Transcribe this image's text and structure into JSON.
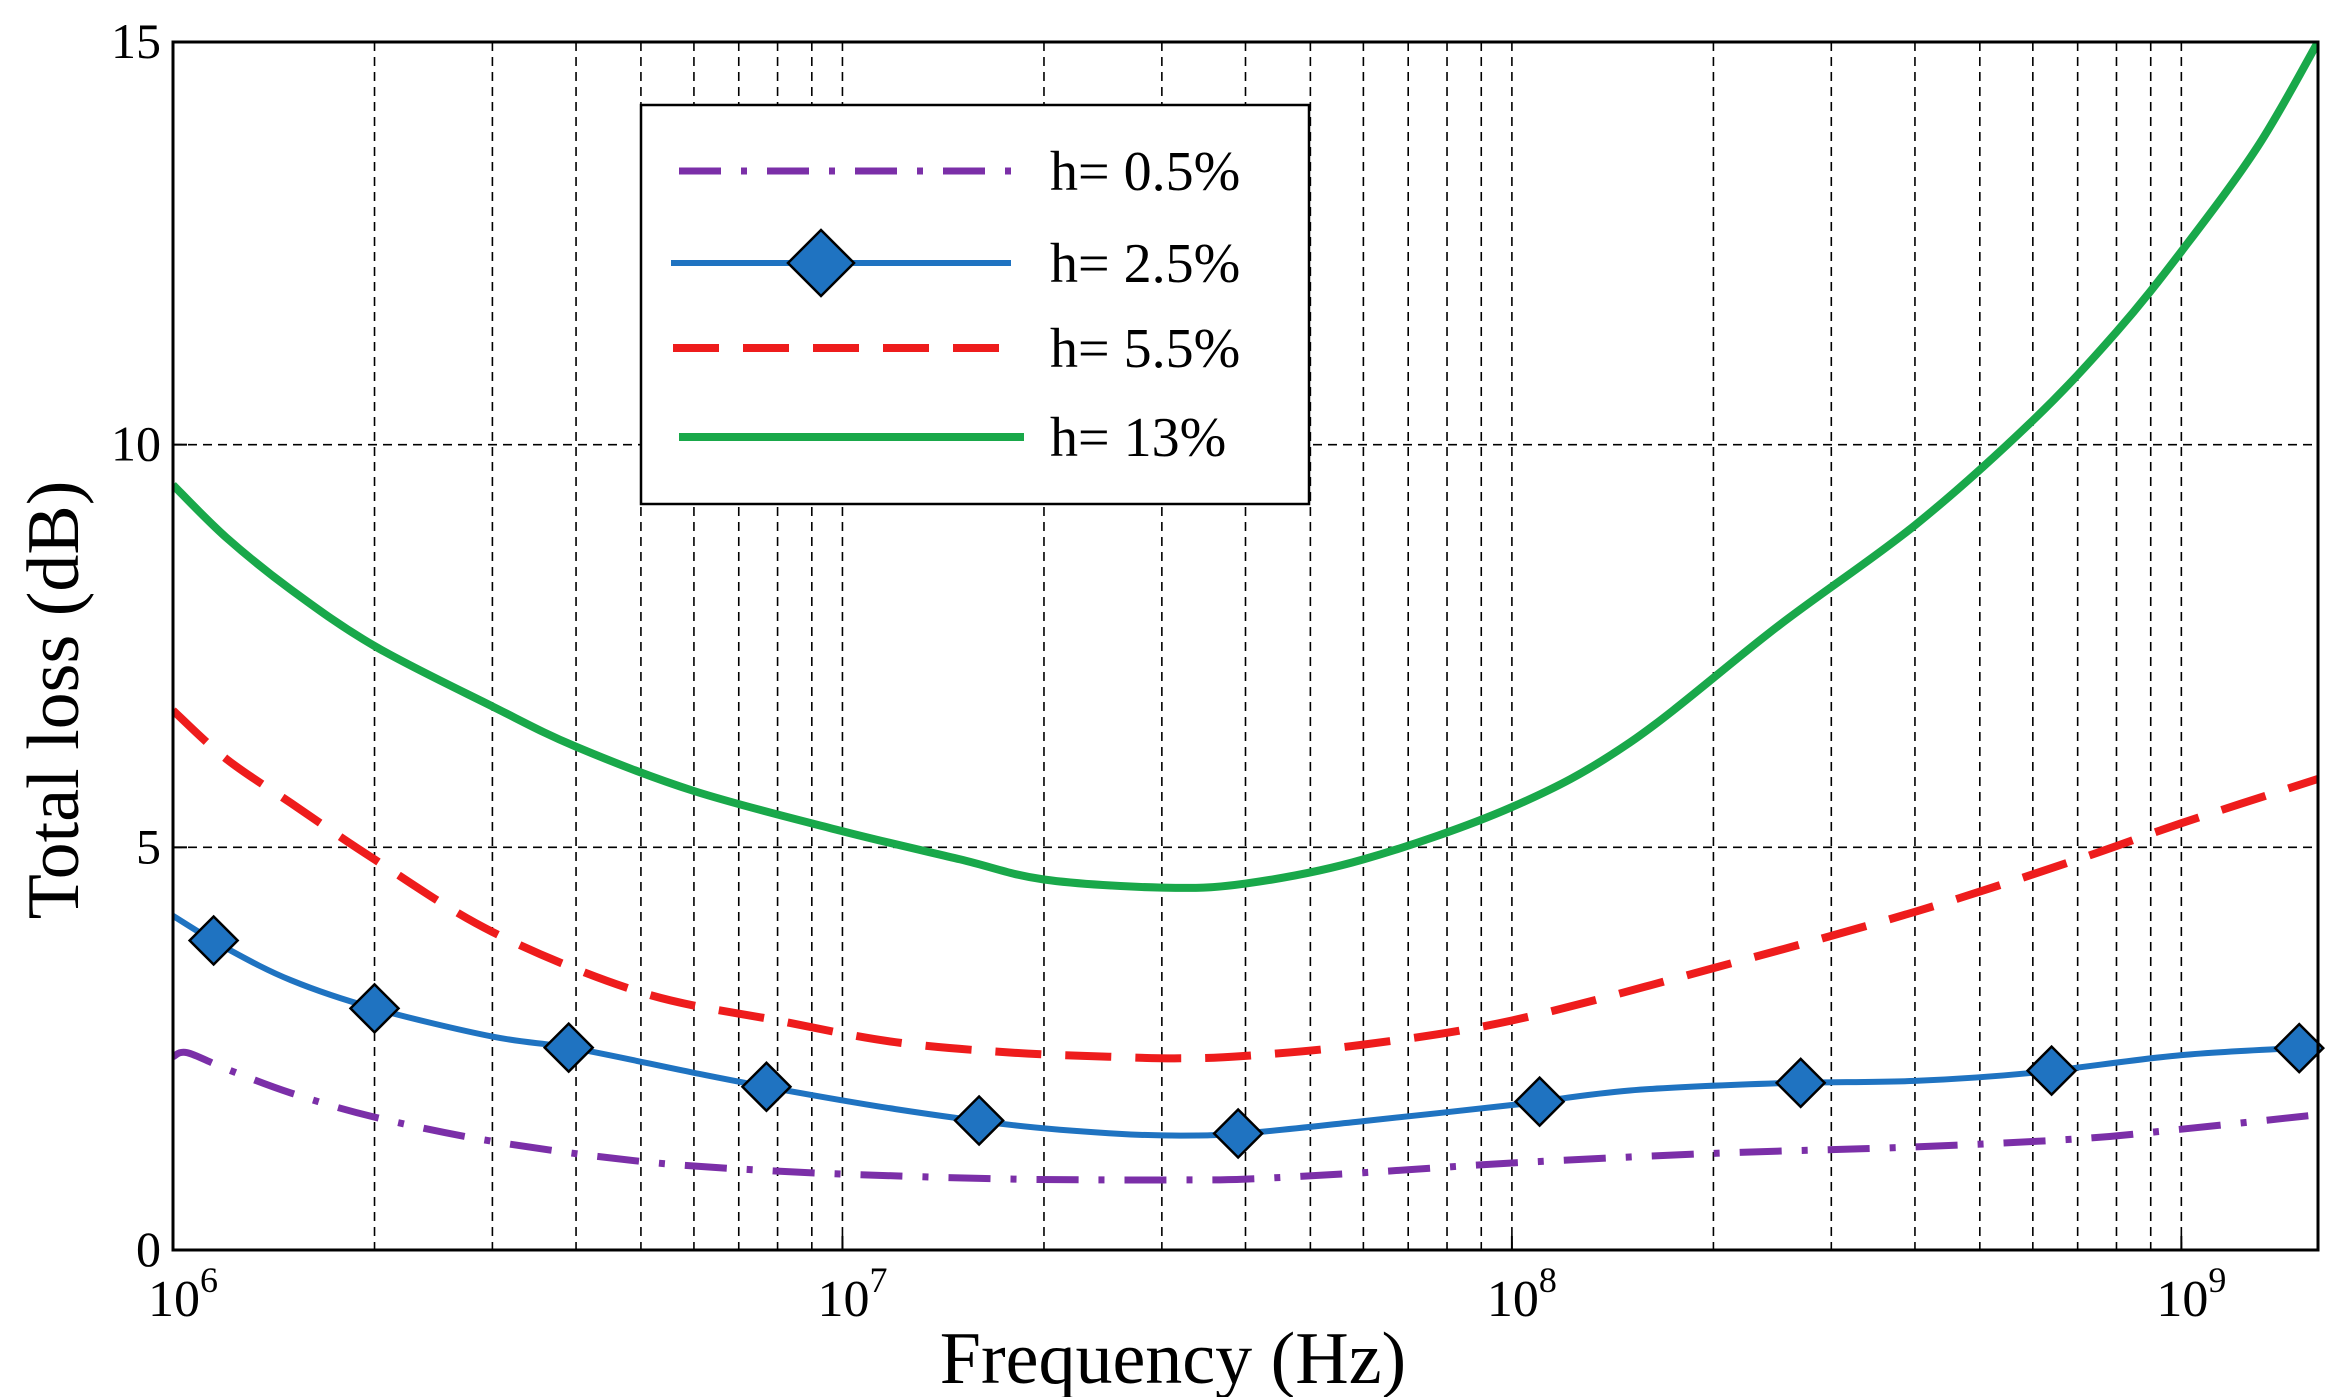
{
  "chart_data": {
    "type": "line",
    "title": "",
    "xlabel": "Frequency (Hz)",
    "ylabel": "Total loss (dB)",
    "xscale": "log",
    "xlim": [
      1000000,
      1600000000
    ],
    "ylim": [
      0,
      15
    ],
    "grid": true,
    "legend_position": "top-center",
    "x_ticks": [
      {
        "value": 1000000,
        "base": "10",
        "exp": "6"
      },
      {
        "value": 10000000,
        "base": "10",
        "exp": "7"
      },
      {
        "value": 100000000,
        "base": "10",
        "exp": "8"
      },
      {
        "value": 1000000000,
        "base": "10",
        "exp": "9"
      }
    ],
    "y_ticks": [
      {
        "value": 0,
        "label": "0"
      },
      {
        "value": 5,
        "label": "5"
      },
      {
        "value": 10,
        "label": "10"
      },
      {
        "value": 15,
        "label": "15"
      }
    ],
    "series": [
      {
        "name": "h= 0.5%",
        "color": "#7B2FA8",
        "style": "dashdot",
        "marker": "none",
        "x": [
          1000000,
          1050000,
          1200000,
          1500000,
          2000000,
          3000000,
          5000000,
          8000000,
          12000000,
          18000000,
          25000000,
          32000000,
          40000000,
          60000000,
          100000000,
          200000000,
          400000000,
          700000000,
          1000000000,
          1600000000
        ],
        "y": [
          2.4,
          2.45,
          2.25,
          1.95,
          1.65,
          1.35,
          1.1,
          0.98,
          0.92,
          0.88,
          0.87,
          0.87,
          0.88,
          0.96,
          1.08,
          1.2,
          1.28,
          1.38,
          1.5,
          1.68
        ]
      },
      {
        "name": "h= 2.5%",
        "color": "#1F73C1",
        "style": "solid",
        "marker": "diamond",
        "marker_x": [
          1150000,
          2000000,
          3900000,
          7700000,
          16000000,
          39000000,
          110000000,
          270000000,
          640000000,
          1500000000
        ],
        "x": [
          1000000,
          1200000,
          1500000,
          2000000,
          3000000,
          4000000,
          6000000,
          8000000,
          12000000,
          18000000,
          25000000,
          32000000,
          40000000,
          60000000,
          100000000,
          150000000,
          250000000,
          400000000,
          600000000,
          1000000000,
          1600000000
        ],
        "y": [
          4.15,
          3.75,
          3.35,
          3.0,
          2.65,
          2.5,
          2.2,
          2.0,
          1.75,
          1.55,
          1.45,
          1.42,
          1.45,
          1.6,
          1.8,
          1.98,
          2.07,
          2.1,
          2.2,
          2.42,
          2.52
        ]
      },
      {
        "name": "h= 5.5%",
        "color": "#EE1C1C",
        "style": "dashed",
        "marker": "none",
        "x": [
          1000000,
          1200000,
          1500000,
          2000000,
          3000000,
          5000000,
          8000000,
          12000000,
          18000000,
          25000000,
          32000000,
          40000000,
          60000000,
          100000000,
          200000000,
          400000000,
          700000000,
          1000000000,
          1600000000
        ],
        "y": [
          6.7,
          6.1,
          5.55,
          4.85,
          3.95,
          3.2,
          2.85,
          2.58,
          2.45,
          2.4,
          2.38,
          2.41,
          2.55,
          2.85,
          3.5,
          4.2,
          4.85,
          5.3,
          5.85
        ]
      },
      {
        "name": "h= 13%",
        "color": "#19A84A",
        "style": "solid",
        "marker": "none",
        "x": [
          1000000,
          1200000,
          1500000,
          2000000,
          3000000,
          4000000,
          6000000,
          10000000,
          15000000,
          20000000,
          30000000,
          40000000,
          60000000,
          100000000,
          150000000,
          250000000,
          400000000,
          600000000,
          800000000,
          1000000000,
          1300000000,
          1600000000
        ],
        "y": [
          9.5,
          8.85,
          8.2,
          7.5,
          6.75,
          6.25,
          5.7,
          5.2,
          4.85,
          4.6,
          4.5,
          4.55,
          4.85,
          5.5,
          6.3,
          7.75,
          9.0,
          10.3,
          11.4,
          12.4,
          13.7,
          15.0
        ]
      }
    ]
  }
}
